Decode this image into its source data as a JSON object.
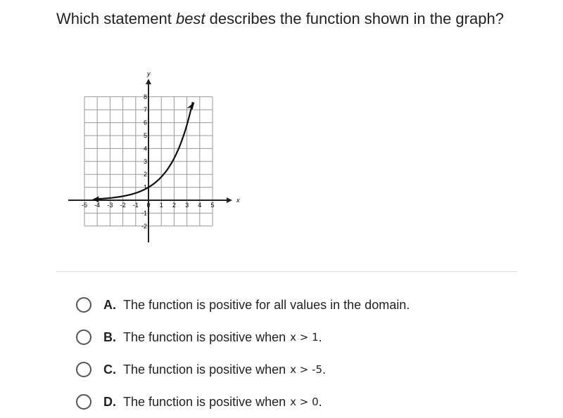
{
  "question": {
    "parts": [
      "Which statement ",
      "best",
      " describes the function shown in the graph?"
    ]
  },
  "graph": {
    "x_label": "x",
    "y_label": "y",
    "x_ticks": [
      "-5",
      "-4",
      "-3",
      "-2",
      "-1",
      "0",
      "1",
      "2",
      "3",
      "4",
      "5"
    ],
    "y_ticks": [
      "8",
      "7",
      "6",
      "5",
      "4",
      "3",
      "2",
      "1",
      "-1",
      "-2"
    ]
  },
  "options": [
    {
      "letter": "A.",
      "text": "The function is positive for all values in the domain."
    },
    {
      "letter": "B.",
      "text": "The function is positive when ",
      "math": "x > 1",
      "end": "."
    },
    {
      "letter": "C.",
      "text": "The function is positive when ",
      "math": "x > -5",
      "end": "."
    },
    {
      "letter": "D.",
      "text": "The function is positive when ",
      "math": "x > 0",
      "end": "."
    }
  ]
}
